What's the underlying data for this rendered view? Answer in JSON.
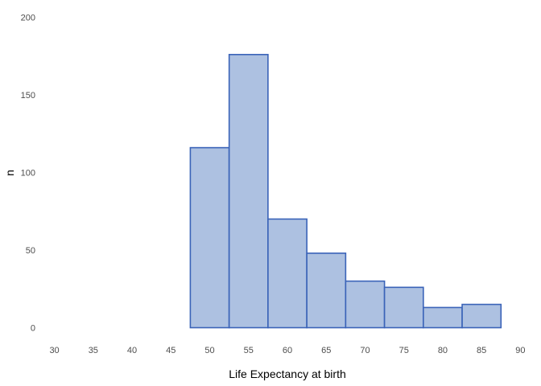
{
  "chart_data": {
    "type": "bar",
    "xlabel": "Life Expectancy at birth",
    "ylabel": "n",
    "xlim": [
      28.8,
      91.2
    ],
    "ylim": [
      -7,
      207
    ],
    "x_ticks": [
      30,
      35,
      40,
      45,
      50,
      55,
      60,
      65,
      70,
      75,
      80,
      85,
      90
    ],
    "y_ticks": [
      0,
      50,
      100,
      150,
      200
    ],
    "bin_width": 5,
    "x": [
      35,
      40,
      45,
      50,
      55,
      60,
      65,
      70,
      75,
      80,
      85
    ],
    "values": [
      0,
      0,
      0,
      116,
      176,
      70,
      48,
      30,
      26,
      13,
      15
    ],
    "grid": false,
    "colors": {
      "bar_fill": "#adc1e1",
      "bar_stroke": "#3a63b8",
      "background": "#ffffff"
    }
  }
}
